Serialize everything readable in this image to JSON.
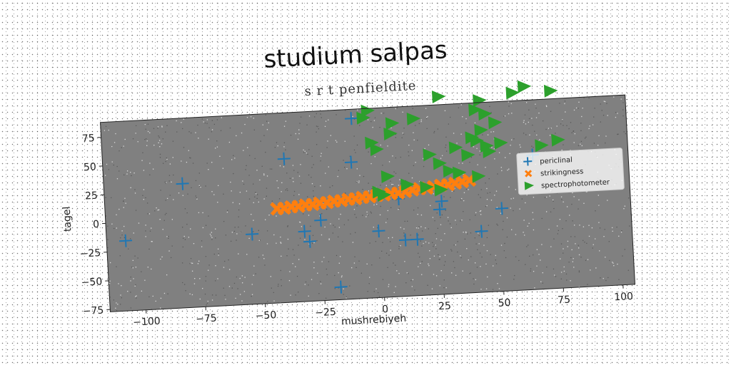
{
  "chart_data": {
    "type": "scatter",
    "title": "studium salpas",
    "subtitle": "s r t penfieldite",
    "xlabel": "mushrebiyeh",
    "ylabel": "tagel",
    "xlim": [
      -115,
      105
    ],
    "ylim": [
      -77,
      88
    ],
    "xticks": [
      -100,
      -75,
      -50,
      -25,
      0,
      25,
      50,
      75,
      100
    ],
    "yticks": [
      -75,
      -50,
      -25,
      0,
      25,
      50,
      75
    ],
    "xtick_labels": [
      "−100",
      "−75",
      "−50",
      "−25",
      "0",
      "25",
      "50",
      "75",
      "100"
    ],
    "ytick_labels": [
      "−75",
      "−50",
      "−25",
      "0",
      "25",
      "50",
      "75"
    ],
    "grid": false,
    "background": "#808080",
    "legend_position": "center-right",
    "series": [
      {
        "name": "periclinal",
        "marker": "plus",
        "color": "#1f77b4",
        "points": [
          [
            -107,
            -16
          ],
          [
            -82,
            31
          ],
          [
            -54,
            -16
          ],
          [
            -39,
            48
          ],
          [
            -32,
            -16
          ],
          [
            -30,
            -25
          ],
          [
            -25,
            -7
          ],
          [
            -18,
            -66
          ],
          [
            -11,
            42
          ],
          [
            -10,
            80
          ],
          [
            -1,
            -19
          ],
          [
            8,
            8
          ],
          [
            10,
            -28
          ],
          [
            15,
            -28
          ],
          [
            25,
            -3
          ],
          [
            26,
            4
          ],
          [
            42,
            -24
          ],
          [
            51,
            -5
          ],
          [
            65,
            40
          ]
        ]
      },
      {
        "name": "strikingness",
        "marker": "x",
        "color": "#ff7f0e",
        "points": [
          [
            -43,
            5
          ],
          [
            -40,
            5
          ],
          [
            -37,
            6
          ],
          [
            -34,
            6
          ],
          [
            -31,
            7
          ],
          [
            -28,
            7
          ],
          [
            -25,
            8
          ],
          [
            -22,
            8
          ],
          [
            -19,
            9
          ],
          [
            -16,
            9
          ],
          [
            -13,
            10
          ],
          [
            -10,
            10
          ],
          [
            -7,
            11
          ],
          [
            -4,
            11
          ],
          [
            -1,
            12
          ],
          [
            2,
            12
          ],
          [
            5,
            13
          ],
          [
            8,
            13
          ],
          [
            11,
            14
          ],
          [
            14,
            15
          ],
          [
            17,
            16
          ],
          [
            20,
            16
          ],
          [
            23,
            17
          ],
          [
            26,
            18
          ],
          [
            29,
            18
          ],
          [
            32,
            19
          ],
          [
            35,
            20
          ],
          [
            38,
            21
          ]
        ]
      },
      {
        "name": "spectrophotometer",
        "marker": "triangle-right",
        "color": "#2ca02c",
        "points": [
          [
            -3,
            86
          ],
          [
            -5,
            80
          ],
          [
            7,
            74
          ],
          [
            16,
            77
          ],
          [
            27,
            95
          ],
          [
            44,
            90
          ],
          [
            58,
            95
          ],
          [
            63,
            100
          ],
          [
            74,
            95
          ],
          [
            -2,
            58
          ],
          [
            0,
            52
          ],
          [
            6,
            65
          ],
          [
            22,
            45
          ],
          [
            33,
            50
          ],
          [
            40,
            58
          ],
          [
            42,
            82
          ],
          [
            46,
            78
          ],
          [
            50,
            70
          ],
          [
            44,
            64
          ],
          [
            42,
            55
          ],
          [
            46,
            50
          ],
          [
            52,
            52
          ],
          [
            47,
            45
          ],
          [
            38,
            43
          ],
          [
            26,
            37
          ],
          [
            30,
            30
          ],
          [
            34,
            28
          ],
          [
            4,
            28
          ],
          [
            0,
            15
          ],
          [
            2,
            12
          ],
          [
            12,
            20
          ],
          [
            20,
            17
          ],
          [
            26,
            14
          ],
          [
            42,
            24
          ],
          [
            69,
            48
          ],
          [
            76,
            52
          ]
        ]
      }
    ]
  }
}
